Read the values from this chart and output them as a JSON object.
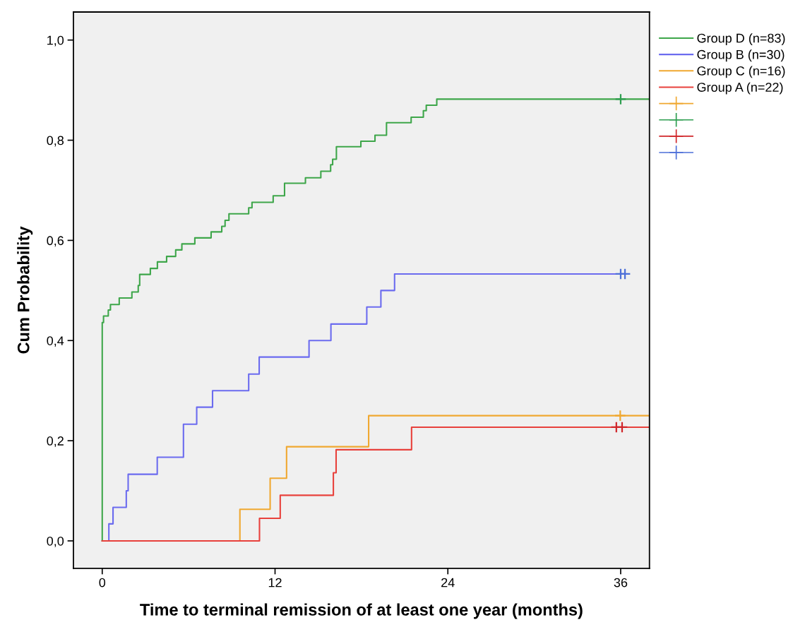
{
  "chart_data": {
    "type": "step",
    "xlabel": "Time to terminal remission of at least one year (months)",
    "ylabel": "Cum Probability",
    "xlim": [
      -2,
      38
    ],
    "xticks": [
      0,
      12,
      24,
      36
    ],
    "ylim": [
      -0.055,
      1.056
    ],
    "yticks": [
      {
        "value": 0,
        "label": "0,0"
      },
      {
        "value": 0.2,
        "label": "0,2"
      },
      {
        "value": 0.4,
        "label": "0,4"
      },
      {
        "value": 0.6,
        "label": "0,6"
      },
      {
        "value": 0.8,
        "label": "0,8"
      },
      {
        "value": 1.0,
        "label": "1,0"
      }
    ],
    "grid": false,
    "legend": "top right",
    "line_style": "solid",
    "series": [
      {
        "name": "Group D (n=83)",
        "color": "#3ea64a",
        "marker": "none",
        "x": [
          0,
          0,
          0.09,
          0.42,
          0.57,
          1.18,
          2.06,
          2.5,
          2.6,
          3.34,
          3.83,
          4.47,
          5.1,
          5.53,
          6.43,
          7.56,
          8.3,
          8.53,
          8.8,
          10.17,
          10.4,
          11.87,
          12.66,
          14.11,
          15.18,
          15.86,
          16.0,
          16.26,
          17.96,
          18.94,
          19.74,
          21.45,
          22.3,
          22.5,
          23.23,
          38
        ],
        "values": [
          0,
          0.436,
          0.449,
          0.461,
          0.472,
          0.485,
          0.497,
          0.51,
          0.532,
          0.544,
          0.557,
          0.568,
          0.581,
          0.593,
          0.605,
          0.617,
          0.628,
          0.64,
          0.653,
          0.665,
          0.676,
          0.689,
          0.714,
          0.725,
          0.738,
          0.751,
          0.762,
          0.787,
          0.798,
          0.81,
          0.835,
          0.846,
          0.859,
          0.87,
          0.882,
          0.882
        ]
      },
      {
        "name": "Group B (n=30)",
        "color": "#6b6bef",
        "marker": "none",
        "x": [
          0,
          0.46,
          0.75,
          1.67,
          1.8,
          3.82,
          5.64,
          6.56,
          7.66,
          10.17,
          10.9,
          14.36,
          15.88,
          18.37,
          19.35,
          20.3,
          36.3
        ],
        "values": [
          0,
          0.034,
          0.067,
          0.1,
          0.133,
          0.167,
          0.233,
          0.267,
          0.3,
          0.333,
          0.367,
          0.4,
          0.433,
          0.467,
          0.5,
          0.533,
          0.533
        ]
      },
      {
        "name": "Group C (n=16)",
        "color": "#f0a830",
        "marker": "none",
        "x": [
          0,
          9.56,
          11.66,
          12.8,
          18.5,
          38
        ],
        "values": [
          0,
          0.063,
          0.125,
          0.188,
          0.25,
          0.25
        ]
      },
      {
        "name": "Group A (n=22)",
        "color": "#e8413c",
        "marker": "none",
        "x": [
          0,
          10.92,
          12.36,
          16.05,
          16.24,
          21.48,
          38
        ],
        "values": [
          0,
          0.045,
          0.091,
          0.136,
          0.182,
          0.227,
          0.227
        ]
      },
      {
        "type": "scatter",
        "color": "#f0a830",
        "marker": "cross",
        "x": [
          35.97
        ],
        "values": [
          0.25
        ]
      },
      {
        "type": "scatter",
        "color": "#2e9e50",
        "marker": "cross",
        "x": [
          36
        ],
        "values": [
          0.882
        ]
      },
      {
        "type": "scatter",
        "color": "#d0262a",
        "marker": "cross",
        "x": [
          35.7,
          36.1
        ],
        "values": [
          0.227,
          0.227
        ]
      },
      {
        "type": "scatter",
        "color": "#4d6fd8",
        "marker": "cross",
        "x": [
          36.0,
          36.3
        ],
        "values": [
          0.533,
          0.533
        ]
      }
    ]
  }
}
